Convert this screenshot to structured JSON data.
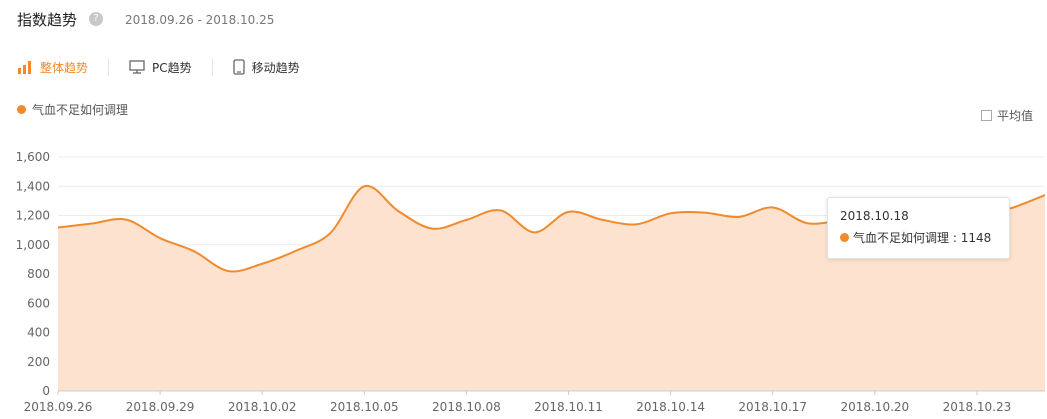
{
  "header": {
    "title": "指数趋势",
    "help_icon": "question-icon",
    "date_range": "2018.09.26 - 2018.10.25"
  },
  "tabs": [
    {
      "label": "整体趋势",
      "icon": "bar-chart-icon",
      "active": true
    },
    {
      "label": "PC趋势",
      "icon": "monitor-icon",
      "active": false
    },
    {
      "label": "移动趋势",
      "icon": "mobile-icon",
      "active": false
    }
  ],
  "legend": {
    "label": "气血不足如何调理"
  },
  "average_toggle": {
    "label": "平均值",
    "checked": false
  },
  "colors": {
    "accent": "#f08a2c",
    "fill": "#fde3cf",
    "grid": "#ececec"
  },
  "tooltip": {
    "date": "2018.10.18",
    "series_label": "气血不足如何调理",
    "value": "1148"
  },
  "chart_data": {
    "type": "area",
    "ylim": [
      0,
      1600
    ],
    "yticks": [
      "0",
      "200",
      "400",
      "600",
      "800",
      "1,000",
      "1,200",
      "1,400",
      "1,600"
    ],
    "x": [
      "2018.09.26",
      "2018.09.27",
      "2018.09.28",
      "2018.09.29",
      "2018.09.30",
      "2018.10.01",
      "2018.10.02",
      "2018.10.03",
      "2018.10.04",
      "2018.10.05",
      "2018.10.06",
      "2018.10.07",
      "2018.10.08",
      "2018.10.09",
      "2018.10.10",
      "2018.10.11",
      "2018.10.12",
      "2018.10.13",
      "2018.10.14",
      "2018.10.15",
      "2018.10.16",
      "2018.10.17",
      "2018.10.18",
      "2018.10.19",
      "2018.10.20",
      "2018.10.21",
      "2018.10.22",
      "2018.10.23",
      "2018.10.24",
      "2018.10.25"
    ],
    "xtick_labels": [
      "2018.09.26",
      "2018.09.29",
      "2018.10.02",
      "2018.10.05",
      "2018.10.08",
      "2018.10.11",
      "2018.10.14",
      "2018.10.17",
      "2018.10.20",
      "2018.10.23"
    ],
    "series": [
      {
        "name": "气血不足如何调理",
        "values": [
          1118,
          1145,
          1172,
          1045,
          955,
          820,
          870,
          960,
          1080,
          1400,
          1230,
          1110,
          1170,
          1235,
          1085,
          1225,
          1170,
          1140,
          1215,
          1220,
          1190,
          1255,
          1148,
          1165,
          1180,
          1190,
          1195,
          1200,
          1250,
          1340
        ]
      }
    ],
    "grid": true
  }
}
